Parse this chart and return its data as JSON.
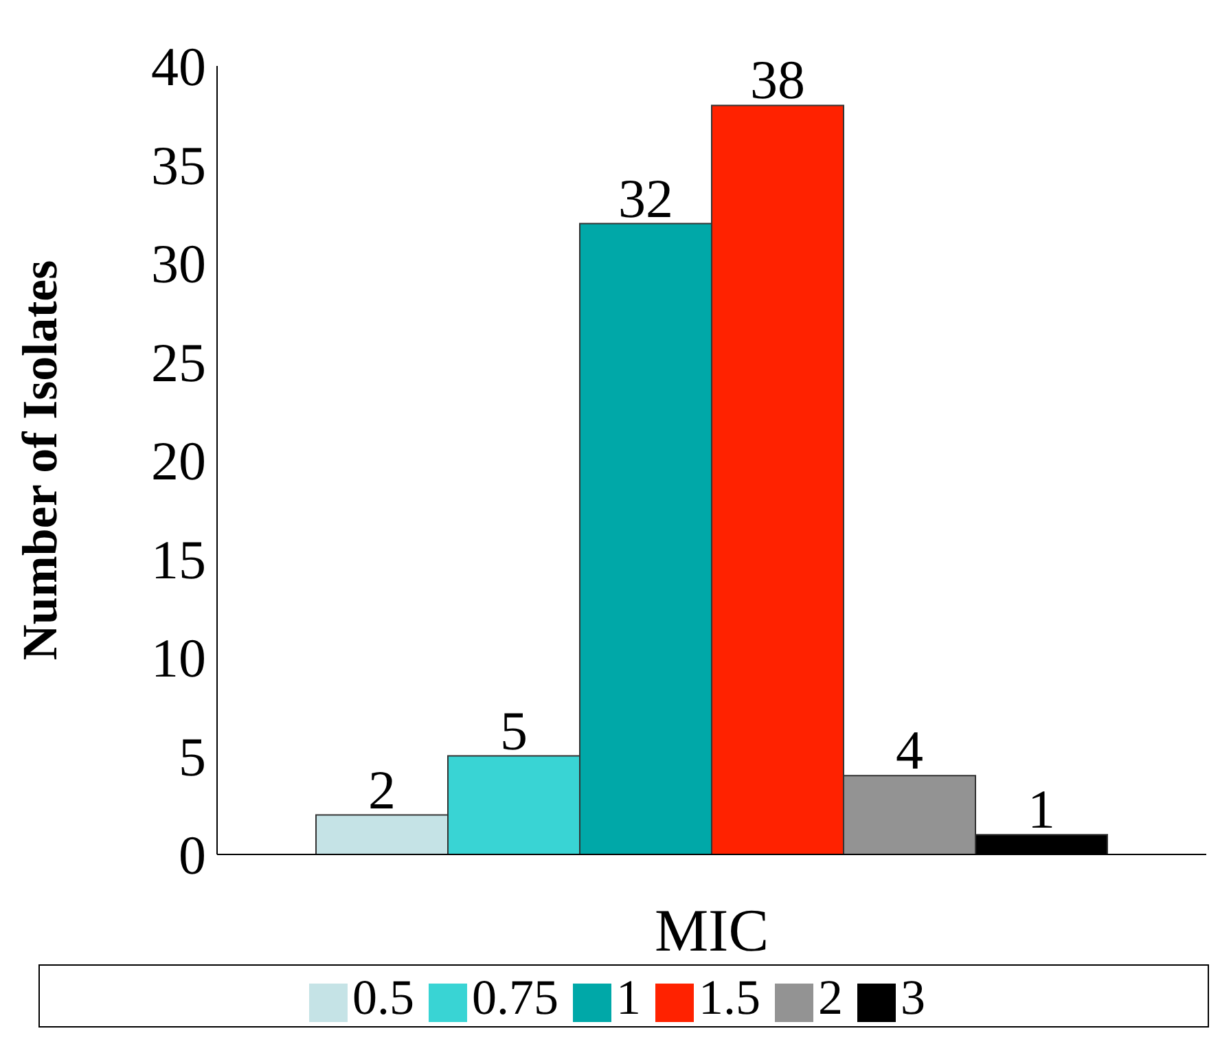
{
  "chart_data": {
    "type": "bar",
    "xlabel": "MIC",
    "ylabel": "Number of Isolates",
    "categories": [
      null
    ],
    "series": [
      {
        "name": "0.5",
        "color": "#c5e3e6",
        "values": [
          2
        ]
      },
      {
        "name": "0.75",
        "color": "#39d4d4",
        "values": [
          5
        ]
      },
      {
        "name": "1",
        "color": "#00a8a8",
        "values": [
          32
        ]
      },
      {
        "name": "1.5",
        "color": "#ff2200",
        "values": [
          38
        ]
      },
      {
        "name": "2",
        "color": "#939393",
        "values": [
          4
        ]
      },
      {
        "name": "3",
        "color": "#000000",
        "values": [
          1
        ]
      }
    ],
    "ylim": [
      0,
      40
    ],
    "yticks": [
      0,
      5,
      10,
      15,
      20,
      25,
      30,
      35,
      40
    ],
    "data_labels": true,
    "grid": false,
    "legend": "bottom"
  }
}
